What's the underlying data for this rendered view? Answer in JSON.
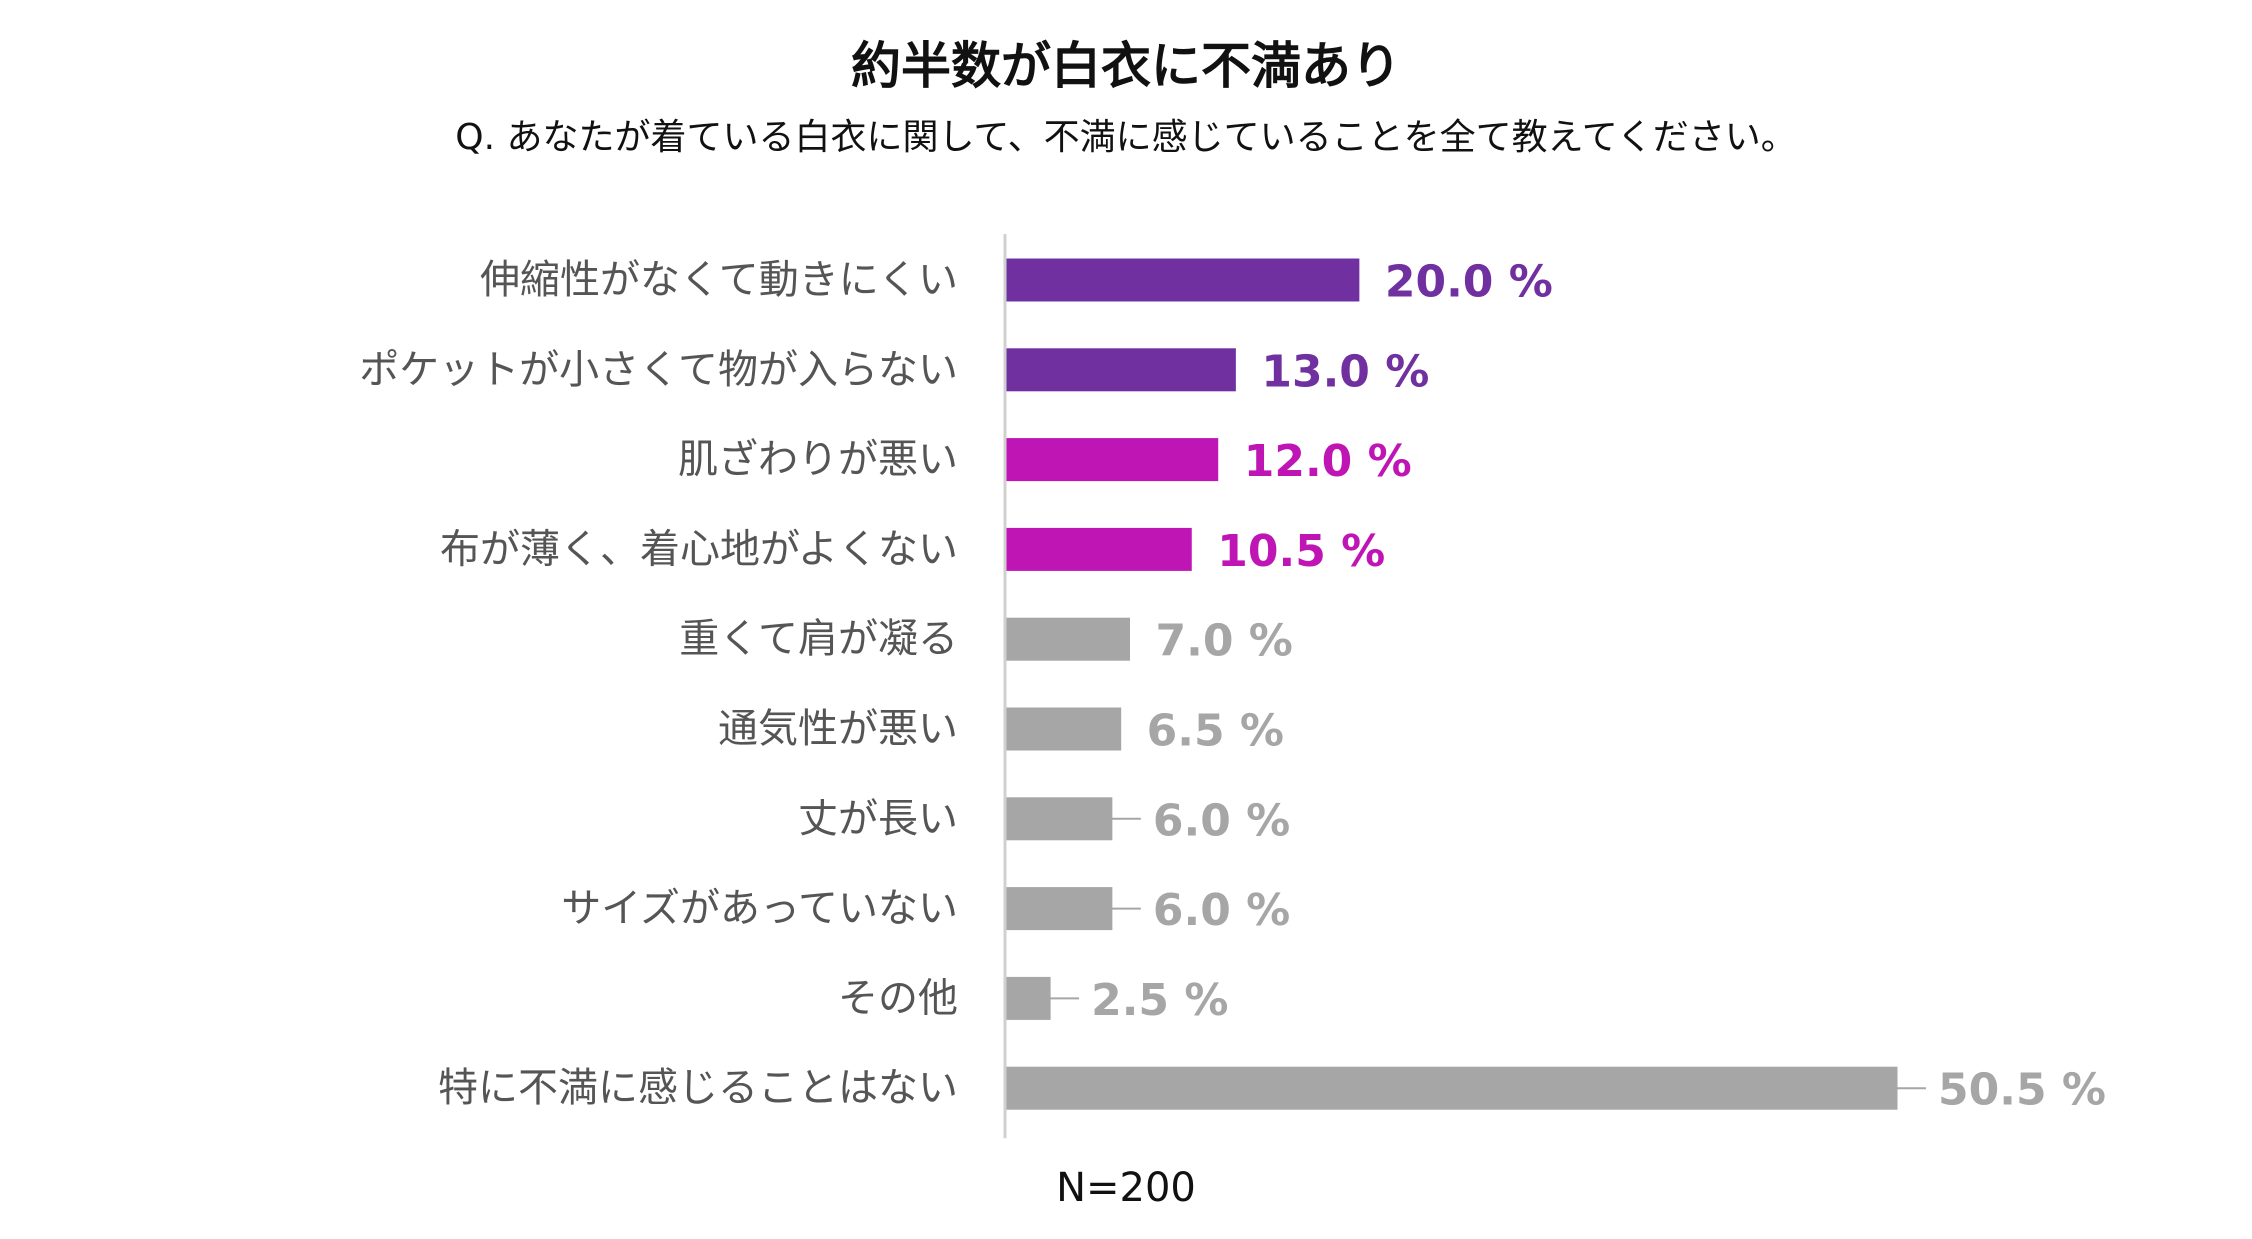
{
  "chart_data": {
    "type": "bar",
    "orientation": "horizontal",
    "title": "約半数が白衣に不満あり",
    "subtitle": "Q. あなたが着ている白衣に関して、不満に感じていることを全て教えてください。",
    "categories": [
      "伸縮性がなくて動きにくい",
      "ポケットが小さくて物が入らない",
      "肌ざわりが悪い",
      "布が薄く、着心地がよくない",
      "重くて肩が凝る",
      "通気性が悪い",
      "丈が長い",
      "サイズがあっていない",
      "その他",
      "特に不満に感じることはない"
    ],
    "values": [
      20.0,
      13.0,
      12.0,
      10.5,
      7.0,
      6.5,
      6.0,
      6.0,
      2.5,
      50.5
    ],
    "value_labels": [
      "20.0 %",
      "13.0 %",
      "12.0 %",
      "10.5 %",
      "7.0 %",
      "6.5 %",
      "6.0 %",
      "6.0 %",
      "2.5 %",
      "50.5 %"
    ],
    "colors": [
      "#7030a0",
      "#7030a0",
      "#c015b5",
      "#c015b5",
      "#a6a6a6",
      "#a6a6a6",
      "#a6a6a6",
      "#a6a6a6",
      "#a6a6a6",
      "#a6a6a6"
    ],
    "leader_lines": [
      false,
      false,
      false,
      false,
      false,
      false,
      true,
      true,
      true,
      true
    ],
    "xlim": [
      0,
      50.5
    ],
    "axis_color": "#d0d0d0",
    "leader_color": "#a6a6a6",
    "footer": "N=200"
  }
}
